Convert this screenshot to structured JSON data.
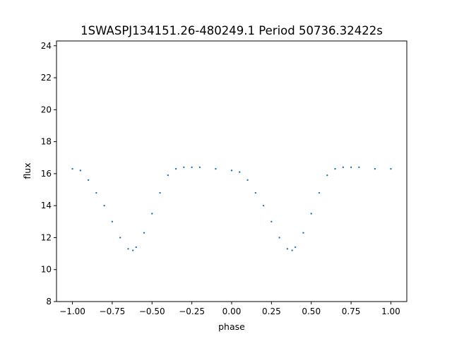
{
  "chart_data": {
    "type": "scatter",
    "title": "1SWASPJ134151.26-480249.1 Period 50736.32422s",
    "xlabel": "phase",
    "ylabel": "flux",
    "xlim": [
      -1.1,
      1.1
    ],
    "ylim": [
      8,
      24.3
    ],
    "x_ticks": [
      -1.0,
      -0.75,
      -0.5,
      -0.25,
      0.0,
      0.25,
      0.5,
      0.75,
      1.0
    ],
    "x_tick_labels": [
      "−1.00",
      "−0.75",
      "−0.50",
      "−0.25",
      "0.00",
      "0.25",
      "0.50",
      "0.75",
      "1.00"
    ],
    "y_ticks": [
      8,
      10,
      12,
      14,
      16,
      18,
      20,
      22,
      24
    ],
    "y_tick_labels": [
      "8",
      "10",
      "12",
      "14",
      "16",
      "18",
      "20",
      "22",
      "24"
    ],
    "grid": false,
    "point_color": "#1f77b4",
    "series": [
      {
        "phase": [
          -1.0,
          -0.95,
          -0.9,
          -0.85,
          -0.8,
          -0.75,
          -0.7,
          -0.65,
          -0.62,
          -0.6,
          -0.55,
          -0.5,
          -0.45,
          -0.4,
          -0.35,
          -0.3,
          -0.25,
          -0.2,
          -0.1,
          0.0,
          0.05,
          0.1,
          0.15,
          0.2,
          0.25,
          0.3,
          0.35,
          0.38,
          0.4,
          0.45,
          0.5,
          0.55,
          0.6,
          0.65,
          0.7,
          0.75,
          0.8,
          0.9,
          1.0
        ],
        "flux": [
          16.3,
          16.2,
          15.6,
          14.8,
          14.0,
          13.0,
          12.0,
          11.3,
          11.2,
          11.4,
          12.3,
          13.5,
          14.8,
          15.9,
          16.3,
          16.4,
          16.4,
          16.4,
          16.3,
          16.2,
          16.1,
          15.6,
          14.8,
          14.0,
          13.0,
          12.0,
          11.3,
          11.2,
          11.4,
          12.3,
          13.5,
          14.8,
          15.9,
          16.3,
          16.4,
          16.4,
          16.4,
          16.3,
          16.3
        ]
      }
    ]
  }
}
